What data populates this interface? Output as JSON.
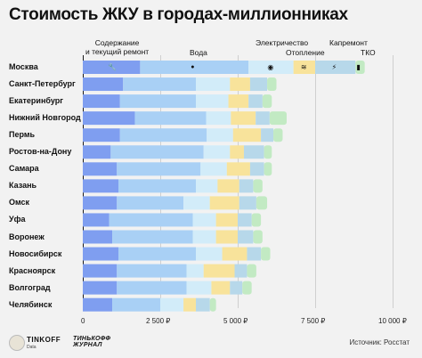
{
  "chart_data": {
    "type": "bar",
    "stacked": true,
    "orientation": "horizontal",
    "title": "Стоимость ЖКУ в городах-миллионниках",
    "categories": [
      "Москва",
      "Санкт-Петербург",
      "Екатеринбург",
      "Нижний Новгород",
      "Пермь",
      "Ростов-на-Дону",
      "Самара",
      "Казань",
      "Омск",
      "Уфа",
      "Воронеж",
      "Новосибирск",
      "Красноярск",
      "Волгоград",
      "Челябинск"
    ],
    "series": [
      {
        "name": "Содержание и текущий ремонт",
        "color": "#7f9ef0",
        "icon": "wrench-icon",
        "values": [
          1850,
          1300,
          1200,
          1680,
          1200,
          900,
          1100,
          1150,
          1100,
          850,
          950,
          1150,
          1100,
          1100,
          950
        ]
      },
      {
        "name": "Вода",
        "color": "#a9d0f5",
        "icon": "water-drop-icon",
        "values": [
          3500,
          2350,
          2450,
          2300,
          2800,
          3000,
          2700,
          2500,
          2150,
          2700,
          2600,
          2500,
          2250,
          2250,
          1550
        ]
      },
      {
        "name": "Электричество",
        "color": "#d2ecf9",
        "icon": "light-bulb-icon",
        "values": [
          1450,
          1100,
          1050,
          800,
          850,
          850,
          850,
          700,
          850,
          750,
          750,
          850,
          550,
          800,
          750
        ]
      },
      {
        "name": "Отопление",
        "color": "#f8e39b",
        "icon": "radiator-icon",
        "values": [
          700,
          650,
          650,
          800,
          900,
          450,
          750,
          700,
          950,
          700,
          700,
          800,
          1000,
          600,
          400
        ]
      },
      {
        "name": "Капремонт",
        "color": "#b7d8ea",
        "icon": "lightning-icon",
        "values": [
          1300,
          550,
          450,
          450,
          400,
          650,
          450,
          450,
          550,
          450,
          500,
          450,
          400,
          400,
          450
        ]
      },
      {
        "name": "ТКО",
        "color": "#c2eac3",
        "icon": "trash-bin-icon",
        "values": [
          300,
          300,
          300,
          550,
          300,
          250,
          250,
          300,
          350,
          300,
          300,
          300,
          300,
          300,
          200
        ]
      }
    ],
    "xlim": [
      0,
      10000
    ],
    "xticks": [
      "0",
      "2 500 ₽",
      "5 000 ₽",
      "7 500 ₽",
      "10 000 ₽"
    ],
    "grid": true,
    "legend": "top"
  },
  "legend_labels": {
    "maintenance_line1": "Содержание",
    "maintenance_line2": "и текущий ремонт",
    "water": "Вода",
    "electricity": "Электричество",
    "heating": "Отопление",
    "capital_repair": "Капремонт",
    "waste": "ТКО"
  },
  "footer": {
    "brand": "TINKOFF",
    "brand_sub": "Data",
    "journal_line1": "ТИНЬКОФФ",
    "journal_line2": "ЖУРНАЛ",
    "source": "Источник: Росстат"
  }
}
